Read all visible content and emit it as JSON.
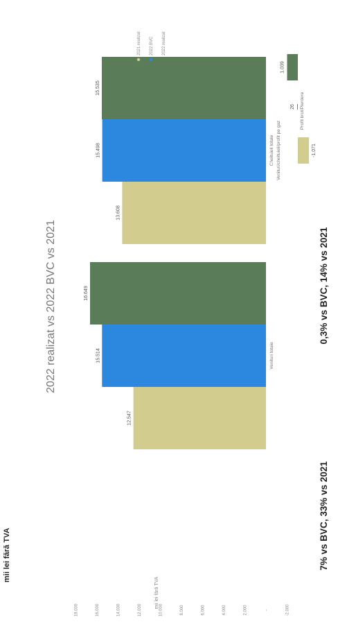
{
  "unit_label": "mii lei fără TVA",
  "ylabel": "mii lei fără TVA",
  "main_title": "2022 realizat  vs 2022 BVC vs 2021",
  "notes": [
    "7% vs BVC, 33% vs 2021",
    "0,3% vs BVC, 14% vs 2021"
  ],
  "colors": {
    "s2021": "#d2cc8f",
    "bvc": "#2b88de",
    "s2022": "#5b7c58"
  },
  "chart_data": [
    {
      "type": "bar",
      "orientation": "horizontal-rotated",
      "title": "2022 realizat  vs 2022 BVC vs 2021",
      "ylabel": "mii lei fără TVA",
      "ylim": [
        -2000,
        18000
      ],
      "y_ticks": [
        -2000,
        0,
        2000,
        4000,
        6000,
        8000,
        10000,
        12000,
        14000,
        16000,
        18000
      ],
      "y_tick_labels": [
        "-2.000",
        "-",
        "2.000",
        "4.000",
        "6.000",
        "8.000",
        "10.000",
        "12.000",
        "14.000",
        "16.000",
        "18.000"
      ],
      "categories": [
        "Venituri totale",
        "Cheltuieli totale"
      ],
      "category_sublabels": [
        "",
        "Venituri/cheltuieli/profit pe gaz"
      ],
      "series": [
        {
          "name": "2021 realizat",
          "values": [
            12547,
            13608
          ],
          "labels": [
            "12.547",
            "13.608"
          ]
        },
        {
          "name": "2022 BVC",
          "values": [
            15514,
            15498
          ],
          "labels": [
            "15.514",
            "15.498"
          ]
        },
        {
          "name": "2022 realizat",
          "values": [
            16649,
            15535
          ],
          "labels": [
            "16.649",
            "15.535"
          ]
        }
      ],
      "legend_position": "top-right",
      "grid": false
    },
    {
      "type": "bar",
      "orientation": "horizontal-rotated",
      "categories": [
        "Profit brut/Pierdere"
      ],
      "series": [
        {
          "name": "2021 realizat",
          "values": [
            -1071
          ],
          "labels": [
            "-1.071"
          ]
        },
        {
          "name": "2022 BVC",
          "values": [
            26
          ],
          "labels": [
            "26"
          ]
        },
        {
          "name": "2022 realizat",
          "values": [
            1039
          ],
          "labels": [
            "1.039"
          ]
        }
      ],
      "legend": [
        "2021 realizat",
        "2022 BVC",
        "2022 realizat"
      ]
    }
  ]
}
